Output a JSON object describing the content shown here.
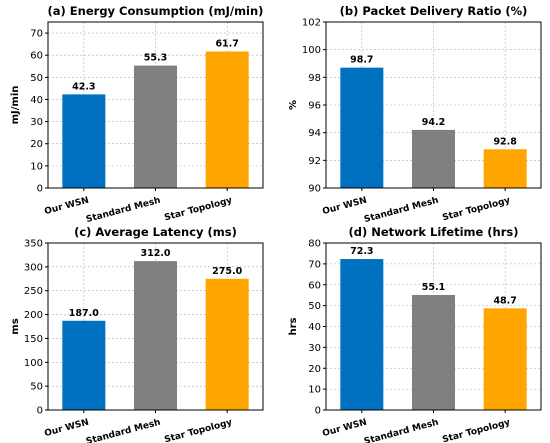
{
  "chart_data": [
    {
      "type": "bar",
      "title": "(a) Energy Consumption (mJ/min)",
      "ylabel": "mJ/min",
      "categories": [
        "Our WSN",
        "Standard Mesh",
        "Star Topology"
      ],
      "values": [
        42.3,
        55.3,
        61.7
      ],
      "data_labels": [
        "42.3",
        "55.3",
        "61.7"
      ],
      "colors": [
        "#0070C0",
        "#808080",
        "#FFA500"
      ],
      "ylim": [
        0,
        75
      ],
      "yticks": [
        0,
        10,
        20,
        30,
        40,
        50,
        60,
        70
      ],
      "grid": true
    },
    {
      "type": "bar",
      "title": "(b) Packet Delivery Ratio (%)",
      "ylabel": "%",
      "categories": [
        "Our WSN",
        "Standard Mesh",
        "Star Topology"
      ],
      "values": [
        98.7,
        94.2,
        92.8
      ],
      "data_labels": [
        "98.7",
        "94.2",
        "92.8"
      ],
      "colors": [
        "#0070C0",
        "#808080",
        "#FFA500"
      ],
      "ylim": [
        90,
        102
      ],
      "yticks": [
        90,
        92,
        94,
        96,
        98,
        100,
        102
      ],
      "grid": true
    },
    {
      "type": "bar",
      "title": "(c) Average Latency (ms)",
      "ylabel": "ms",
      "categories": [
        "Our WSN",
        "Standard Mesh",
        "Star Topology"
      ],
      "values": [
        187.0,
        312.0,
        275.0
      ],
      "data_labels": [
        "187.0",
        "312.0",
        "275.0"
      ],
      "colors": [
        "#0070C0",
        "#808080",
        "#FFA500"
      ],
      "ylim": [
        0,
        350
      ],
      "yticks": [
        0,
        50,
        100,
        150,
        200,
        250,
        300,
        350
      ],
      "grid": true
    },
    {
      "type": "bar",
      "title": "(d) Network Lifetime (hrs)",
      "ylabel": "hrs",
      "categories": [
        "Our WSN",
        "Standard Mesh",
        "Star Topology"
      ],
      "values": [
        72.3,
        55.1,
        48.7
      ],
      "data_labels": [
        "72.3",
        "55.1",
        "48.7"
      ],
      "colors": [
        "#0070C0",
        "#808080",
        "#FFA500"
      ],
      "ylim": [
        0,
        80
      ],
      "yticks": [
        0,
        10,
        20,
        30,
        40,
        50,
        60,
        70,
        80
      ],
      "grid": true
    }
  ]
}
